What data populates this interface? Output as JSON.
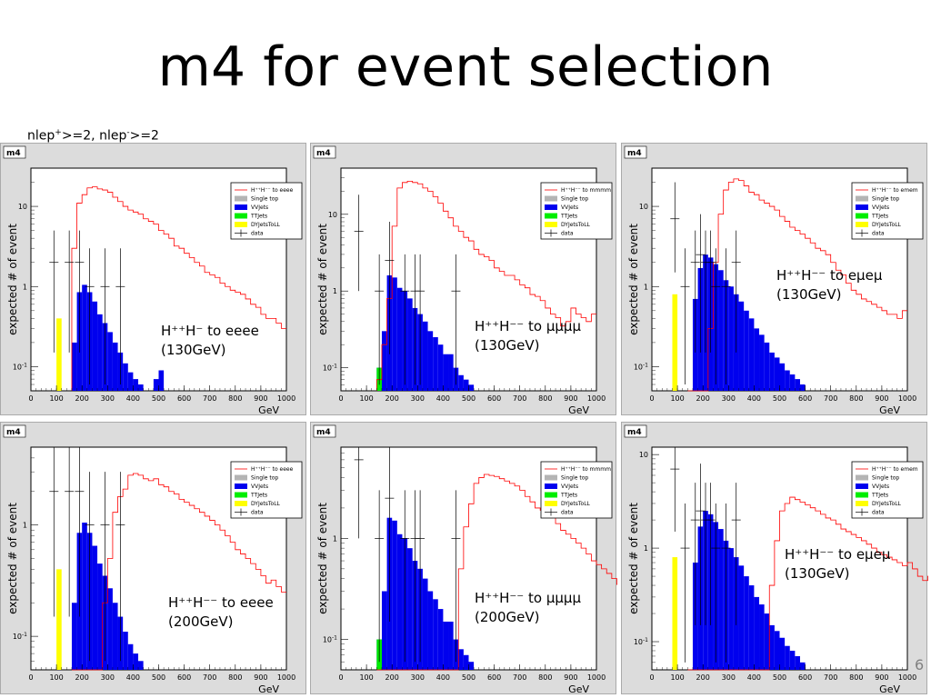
{
  "title": "m4 for event selection",
  "subtitle": {
    "a": "nlep",
    "a_sup": "+",
    "b": ">=2, nlep",
    "b_sup": "-",
    "c": ">=2"
  },
  "page_number": "6",
  "colors": {
    "signal": "#ff0000",
    "vvjets": "#0000ee",
    "ttjets": "#00ee00",
    "dyjets": "#ffff00",
    "singletop": "#b4b4b4",
    "data": "#000000"
  },
  "chart_data": [
    {
      "type": "bar",
      "pad_label": "m4",
      "xlabel": "GeV",
      "ylabel": "expected # of event",
      "xlim": [
        0,
        1000
      ],
      "ylim": [
        0.05,
        30
      ],
      "yscale": "log",
      "xticks": [
        0,
        100,
        200,
        300,
        400,
        500,
        600,
        700,
        800,
        900,
        1000
      ],
      "yticks": [
        {
          "v": 0.1,
          "label": "10^-1"
        },
        {
          "v": 1,
          "label": "1"
        },
        {
          "v": 10,
          "label": "10"
        }
      ],
      "legend": [
        "H⁺⁺H⁻⁻ to eeee",
        "Single top",
        "VVJets",
        "TTJets",
        "DYJetsToLL",
        "data"
      ],
      "annotation": [
        "H⁺⁺H⁻ to eeee",
        "(130GeV)"
      ],
      "bin_width": 20,
      "vv": {
        "x0": 160,
        "values": [
          0.2,
          0.85,
          1.05,
          0.85,
          0.65,
          0.45,
          0.35,
          0.27,
          0.2,
          0.15,
          0.11,
          0.085,
          0.07,
          0.06,
          0.05,
          0.05,
          0.07,
          0.09
        ]
      },
      "dy": {
        "x0": 100,
        "values": [
          0.4
        ]
      },
      "tt": {
        "x0": 160,
        "values": []
      },
      "signal": {
        "x0": 160,
        "values": [
          3,
          11,
          14,
          17,
          17.5,
          16.5,
          16,
          15,
          13,
          11.5,
          10,
          9,
          8.5,
          8,
          7,
          6.5,
          6,
          5,
          4.5,
          4,
          3.2,
          3,
          2.6,
          2.3,
          2,
          1.8,
          1.5,
          1.4,
          1.3,
          1.1,
          1,
          0.9,
          0.85,
          0.8,
          0.7,
          0.6,
          0.55,
          0.45,
          0.4,
          0.4,
          0.35,
          0.3
        ]
      },
      "data": [
        {
          "x": 90,
          "y": 2,
          "lo": 0.15,
          "hi": 5
        },
        {
          "x": 150,
          "y": 2,
          "lo": 0.15,
          "hi": 5
        },
        {
          "x": 190,
          "y": 2,
          "lo": 0.15,
          "hi": 5
        },
        {
          "x": 230,
          "y": 1,
          "lo": 0.06,
          "hi": 3
        },
        {
          "x": 290,
          "y": 1,
          "lo": 0.06,
          "hi": 3
        },
        {
          "x": 350,
          "y": 1,
          "lo": 0.06,
          "hi": 3
        }
      ]
    },
    {
      "type": "bar",
      "pad_label": "m4",
      "xlabel": "GeV",
      "ylabel": "expected # of event",
      "xlim": [
        0,
        1000
      ],
      "ylim": [
        0.05,
        40
      ],
      "yscale": "log",
      "xticks": [
        0,
        100,
        200,
        300,
        400,
        500,
        600,
        700,
        800,
        900,
        1000
      ],
      "yticks": [
        {
          "v": 0.1,
          "label": "10^-1"
        },
        {
          "v": 1,
          "label": "1"
        },
        {
          "v": 10,
          "label": "10"
        }
      ],
      "legend": [
        "H⁺⁺H⁻⁻ to mmmm",
        "Single top",
        "VVJets",
        "TTJets",
        "DYJetsToLL",
        "data"
      ],
      "annotation": [
        "H⁺⁺H⁻⁻ to μμμμ",
        "(130GeV)"
      ],
      "bin_width": 20,
      "vv": {
        "x0": 140,
        "values": [
          0.1,
          0.3,
          1.6,
          1.5,
          1.1,
          1,
          0.8,
          0.6,
          0.5,
          0.4,
          0.3,
          0.25,
          0.2,
          0.15,
          0.15,
          0.1,
          0.08,
          0.07,
          0.06,
          0.05,
          0.05,
          0.05
        ]
      },
      "dy": {
        "x0": 100,
        "values": []
      },
      "tt": {
        "x0": 140,
        "values": [
          0.1
        ]
      },
      "signal": {
        "x0": 140,
        "values": [
          0.07,
          0.2,
          0.8,
          7,
          22,
          26,
          27,
          26,
          25,
          22,
          20,
          17,
          14,
          11,
          9,
          7,
          6,
          5,
          4.5,
          3.5,
          3,
          2.8,
          2.5,
          2,
          1.8,
          1.6,
          1.6,
          1.4,
          1.2,
          1.1,
          0.9,
          0.85,
          0.75,
          0.6,
          0.5,
          0.45,
          0.35,
          0.4,
          0.6,
          0.5,
          0.45,
          0.4,
          0.5
        ]
      },
      "data": [
        {
          "x": 70,
          "y": 6,
          "lo": 1,
          "hi": 18
        },
        {
          "x": 150,
          "y": 1,
          "lo": 0.06,
          "hi": 3
        },
        {
          "x": 190,
          "y": 2.5,
          "lo": 0.15,
          "hi": 8
        },
        {
          "x": 250,
          "y": 1,
          "lo": 0.06,
          "hi": 3
        },
        {
          "x": 290,
          "y": 1,
          "lo": 0.06,
          "hi": 3
        },
        {
          "x": 310,
          "y": 1,
          "lo": 0.06,
          "hi": 3
        },
        {
          "x": 450,
          "y": 1,
          "lo": 0.06,
          "hi": 3
        }
      ]
    },
    {
      "type": "bar",
      "pad_label": "m4",
      "xlabel": "GeV",
      "ylabel": "expected # of event",
      "xlim": [
        0,
        1000
      ],
      "ylim": [
        0.05,
        30
      ],
      "yscale": "log",
      "xticks": [
        0,
        100,
        200,
        300,
        400,
        500,
        600,
        700,
        800,
        900,
        1000
      ],
      "yticks": [
        {
          "v": 0.1,
          "label": "10^-1"
        },
        {
          "v": 1,
          "label": "1"
        },
        {
          "v": 10,
          "label": "10"
        }
      ],
      "legend": [
        "H⁺⁺H⁻⁻ to emem",
        "Single top",
        "VVJets",
        "TTJets",
        "DYJetsToLL",
        "data"
      ],
      "annotation": [
        "H⁺⁺H⁻⁻ to eμeμ",
        "(130GeV)"
      ],
      "bin_width": 20,
      "vv": {
        "x0": 140,
        "values": [
          0.05,
          0.7,
          1.7,
          2.5,
          2.3,
          1.9,
          1.6,
          1.2,
          1,
          0.8,
          0.65,
          0.5,
          0.4,
          0.3,
          0.25,
          0.2,
          0.15,
          0.13,
          0.11,
          0.09,
          0.08,
          0.07,
          0.06,
          0.05,
          0.05
        ]
      },
      "dy": {
        "x0": 80,
        "values": [
          0.8
        ]
      },
      "tt": {
        "x0": 140,
        "values": []
      },
      "signal": {
        "x0": 140,
        "values": [
          0.05,
          0.05,
          0.05,
          0.05,
          0.3,
          2,
          8,
          16,
          20,
          22,
          21,
          18,
          15,
          14,
          12,
          11,
          10,
          9,
          7.5,
          6.5,
          5.5,
          5,
          4.5,
          4,
          3.5,
          3,
          2.8,
          2.5,
          2,
          1.6,
          1.4,
          1.1,
          0.9,
          0.8,
          0.7,
          0.65,
          0.6,
          0.55,
          0.5,
          0.45,
          0.45,
          0.4,
          0.5
        ]
      },
      "data": [
        {
          "x": 90,
          "y": 7,
          "lo": 1.5,
          "hi": 20
        },
        {
          "x": 130,
          "y": 1,
          "lo": 0.06,
          "hi": 3
        },
        {
          "x": 170,
          "y": 2,
          "lo": 0.15,
          "hi": 5
        },
        {
          "x": 190,
          "y": 2.5,
          "lo": 0.15,
          "hi": 8
        },
        {
          "x": 210,
          "y": 2,
          "lo": 0.15,
          "hi": 5
        },
        {
          "x": 230,
          "y": 2,
          "lo": 0.15,
          "hi": 5
        },
        {
          "x": 250,
          "y": 1,
          "lo": 0.06,
          "hi": 3
        },
        {
          "x": 290,
          "y": 1,
          "lo": 0.06,
          "hi": 3
        },
        {
          "x": 330,
          "y": 2,
          "lo": 0.15,
          "hi": 5
        }
      ]
    },
    {
      "type": "bar",
      "pad_label": "m4",
      "xlabel": "GeV",
      "ylabel": "expected # of event",
      "xlim": [
        0,
        1000
      ],
      "ylim": [
        0.05,
        5
      ],
      "yscale": "log",
      "xticks": [
        0,
        100,
        200,
        300,
        400,
        500,
        600,
        700,
        800,
        900,
        1000
      ],
      "yticks": [
        {
          "v": 0.1,
          "label": "10^-1"
        },
        {
          "v": 1,
          "label": "1"
        }
      ],
      "legend": [
        "H⁺⁺H⁻⁻ to eeee",
        "Single top",
        "VVJets",
        "TTJets",
        "DYJetsToLL",
        "data"
      ],
      "annotation": [
        "H⁺⁺H⁻⁻ to eeee",
        "(200GeV)"
      ],
      "bin_width": 20,
      "vv": {
        "x0": 160,
        "values": [
          0.2,
          0.85,
          1.05,
          0.85,
          0.65,
          0.45,
          0.35,
          0.27,
          0.2,
          0.15,
          0.11,
          0.085,
          0.07,
          0.06,
          0.05,
          0.05
        ]
      },
      "dy": {
        "x0": 100,
        "values": [
          0.4
        ]
      },
      "tt": {
        "x0": 160,
        "values": []
      },
      "signal": {
        "x0": 160,
        "values": [
          0.05,
          0.05,
          0.05,
          0.05,
          0.05,
          0.05,
          0.2,
          0.5,
          1.3,
          1.8,
          2.1,
          2.8,
          2.9,
          2.8,
          2.6,
          2.5,
          2.6,
          2.3,
          2.2,
          2,
          1.9,
          1.7,
          1.6,
          1.5,
          1.4,
          1.3,
          1.2,
          1.1,
          1,
          0.9,
          0.8,
          0.7,
          0.6,
          0.55,
          0.5,
          0.45,
          0.4,
          0.35,
          0.3,
          0.32,
          0.28,
          0.25
        ]
      },
      "data": [
        {
          "x": 90,
          "y": 2,
          "lo": 0.15,
          "hi": 5
        },
        {
          "x": 150,
          "y": 2,
          "lo": 0.15,
          "hi": 5
        },
        {
          "x": 190,
          "y": 2,
          "lo": 0.15,
          "hi": 5
        },
        {
          "x": 230,
          "y": 1,
          "lo": 0.06,
          "hi": 3
        },
        {
          "x": 290,
          "y": 1,
          "lo": 0.06,
          "hi": 3
        },
        {
          "x": 350,
          "y": 1,
          "lo": 0.06,
          "hi": 3
        }
      ]
    },
    {
      "type": "bar",
      "pad_label": "m4",
      "xlabel": "GeV",
      "ylabel": "expected # of event",
      "xlim": [
        0,
        1000
      ],
      "ylim": [
        0.05,
        8
      ],
      "yscale": "log",
      "xticks": [
        0,
        100,
        200,
        300,
        400,
        500,
        600,
        700,
        800,
        900,
        1000
      ],
      "yticks": [
        {
          "v": 0.1,
          "label": "10^-1"
        },
        {
          "v": 1,
          "label": "1"
        }
      ],
      "legend": [
        "H⁺⁺H⁻⁻ to mmmm",
        "Single top",
        "VVJets",
        "TTJets",
        "DYJetsToLL",
        "data"
      ],
      "annotation": [
        "H⁺⁺H⁻⁻ to μμμμ",
        "(200GeV)"
      ],
      "bin_width": 20,
      "vv": {
        "x0": 140,
        "values": [
          0.1,
          0.3,
          1.6,
          1.5,
          1.1,
          1,
          0.8,
          0.6,
          0.5,
          0.4,
          0.3,
          0.25,
          0.2,
          0.15,
          0.15,
          0.1,
          0.08,
          0.07,
          0.06,
          0.05,
          0.05,
          0.05
        ]
      },
      "dy": {
        "x0": 100,
        "values": []
      },
      "tt": {
        "x0": 140,
        "values": [
          0.1
        ]
      },
      "signal": {
        "x0": 140,
        "values": [
          0.05,
          0.05,
          0.05,
          0.05,
          0.05,
          0.05,
          0.05,
          0.05,
          0.05,
          0.05,
          0.05,
          0.05,
          0.05,
          0.05,
          0.05,
          0.05,
          0.5,
          1.3,
          2.2,
          3.5,
          4,
          4.3,
          4.2,
          4.1,
          3.9,
          3.7,
          3.5,
          3.3,
          3,
          2.6,
          2.3,
          2,
          1.9,
          1.7,
          1.6,
          1.4,
          1.2,
          1.1,
          1,
          0.9,
          0.8,
          0.7,
          0.6,
          0.55,
          0.5,
          0.45,
          0.4,
          0.35,
          0.3,
          0.3,
          0.28,
          0.27,
          0.3
        ]
      },
      "data": [
        {
          "x": 70,
          "y": 6,
          "lo": 1,
          "hi": 18
        },
        {
          "x": 150,
          "y": 1,
          "lo": 0.06,
          "hi": 3
        },
        {
          "x": 190,
          "y": 2.5,
          "lo": 0.15,
          "hi": 8
        },
        {
          "x": 250,
          "y": 1,
          "lo": 0.06,
          "hi": 3
        },
        {
          "x": 290,
          "y": 1,
          "lo": 0.06,
          "hi": 3
        },
        {
          "x": 310,
          "y": 1,
          "lo": 0.06,
          "hi": 3
        },
        {
          "x": 450,
          "y": 1,
          "lo": 0.06,
          "hi": 3
        }
      ]
    },
    {
      "type": "bar",
      "pad_label": "m4",
      "xlabel": "GeV",
      "ylabel": "expected # of event",
      "xlim": [
        0,
        1000
      ],
      "ylim": [
        0.05,
        12
      ],
      "yscale": "log",
      "xticks": [
        0,
        100,
        200,
        300,
        400,
        500,
        600,
        700,
        800,
        900,
        1000
      ],
      "yticks": [
        {
          "v": 0.1,
          "label": "10^-1"
        },
        {
          "v": 1,
          "label": "1"
        },
        {
          "v": 10,
          "label": "10"
        }
      ],
      "legend": [
        "H⁺⁺H⁻⁻ to emem",
        "Single top",
        "VVJets",
        "TTJets",
        "DYJetsToLL",
        "data"
      ],
      "annotation": [
        "H⁺⁺H⁻⁻ to eμeμ",
        "(130GeV)"
      ],
      "bin_width": 20,
      "vv": {
        "x0": 140,
        "values": [
          0.05,
          0.7,
          1.7,
          2.5,
          2.3,
          1.9,
          1.6,
          1.2,
          1,
          0.8,
          0.65,
          0.5,
          0.4,
          0.3,
          0.25,
          0.2,
          0.15,
          0.13,
          0.11,
          0.09,
          0.08,
          0.07,
          0.06,
          0.05,
          0.05
        ]
      },
      "dy": {
        "x0": 80,
        "values": [
          0.8
        ]
      },
      "tt": {
        "x0": 140,
        "values": []
      },
      "signal": {
        "x0": 140,
        "values": [
          0.05,
          0.05,
          0.05,
          0.05,
          0.05,
          0.05,
          0.05,
          0.05,
          0.05,
          0.05,
          0.05,
          0.05,
          0.05,
          0.05,
          0.05,
          0.05,
          0.4,
          1.2,
          2.5,
          3,
          3.5,
          3.3,
          3.1,
          2.9,
          2.7,
          2.5,
          2.3,
          2.1,
          2,
          1.8,
          1.6,
          1.5,
          1.4,
          1.3,
          1.2,
          1.1,
          1,
          0.9,
          0.85,
          0.8,
          0.75,
          0.7,
          0.65,
          0.7,
          0.6,
          0.5,
          0.45,
          0.5,
          0.4,
          0.45,
          0.4
        ]
      },
      "data": [
        {
          "x": 90,
          "y": 7,
          "lo": 1.5,
          "hi": 20
        },
        {
          "x": 130,
          "y": 1,
          "lo": 0.06,
          "hi": 3
        },
        {
          "x": 170,
          "y": 2,
          "lo": 0.15,
          "hi": 5
        },
        {
          "x": 190,
          "y": 2.5,
          "lo": 0.15,
          "hi": 8
        },
        {
          "x": 210,
          "y": 2,
          "lo": 0.15,
          "hi": 5
        },
        {
          "x": 230,
          "y": 2,
          "lo": 0.15,
          "hi": 5
        },
        {
          "x": 250,
          "y": 1,
          "lo": 0.06,
          "hi": 3
        },
        {
          "x": 290,
          "y": 1,
          "lo": 0.06,
          "hi": 3
        },
        {
          "x": 330,
          "y": 2,
          "lo": 0.15,
          "hi": 5
        }
      ]
    }
  ]
}
